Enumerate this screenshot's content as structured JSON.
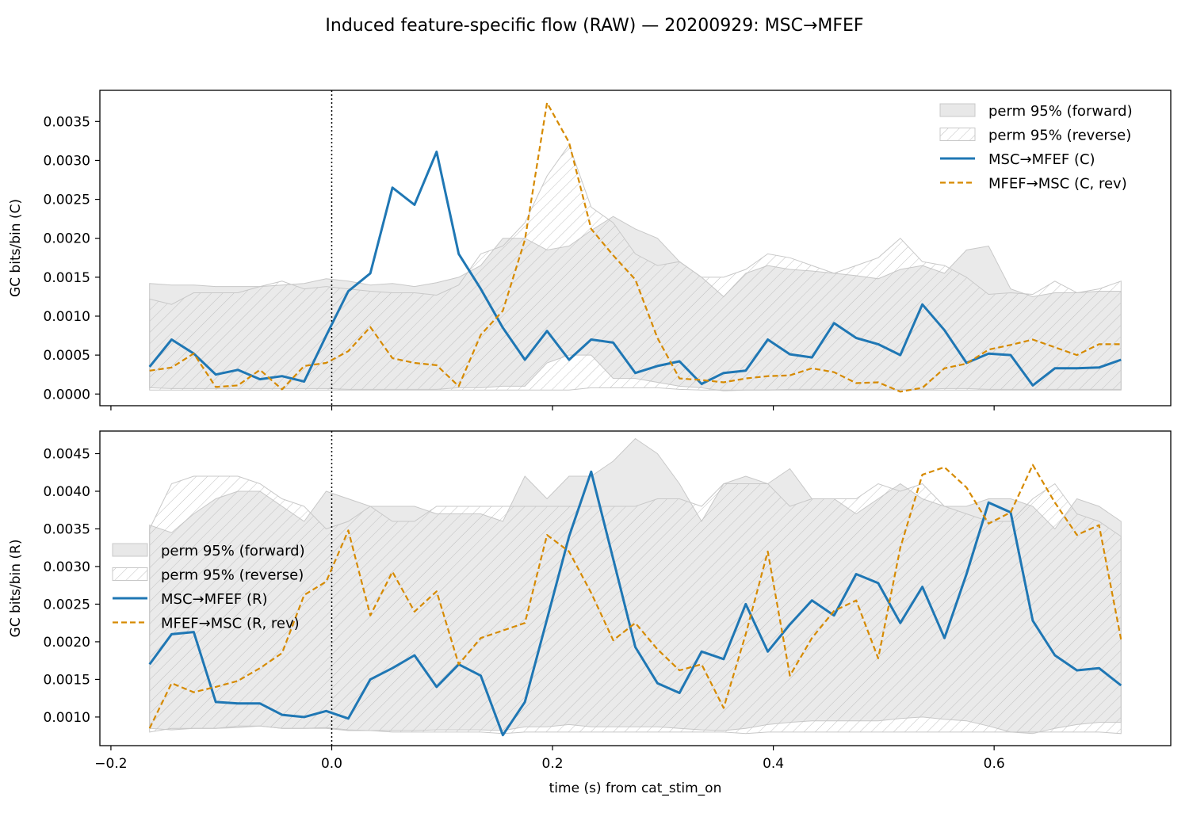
{
  "figure": {
    "title": "Induced feature-specific flow (RAW) — 20200929: MSC→MFEF"
  },
  "colors": {
    "forward": "#1f77b4",
    "reverse": "#d68a00",
    "band_fill": "#d9d9d9",
    "band_edge": "#c8c8c8",
    "hatch": "#c0c0c0"
  },
  "chart_data": [
    {
      "type": "line",
      "panel": "top",
      "ylabel": "GC bits/bin (C)",
      "xlabel": "",
      "xlim": [
        -0.21,
        0.76
      ],
      "ylim": [
        -0.00015,
        0.0039
      ],
      "yticks": [
        0.0,
        0.0005,
        0.001,
        0.0015,
        0.002,
        0.0025,
        0.003,
        0.0035
      ],
      "ytick_labels": [
        "0.0000",
        "0.0005",
        "0.0010",
        "0.0015",
        "0.0020",
        "0.0025",
        "0.0030",
        "0.0035"
      ],
      "xticks": [
        -0.2,
        0.0,
        0.2,
        0.4,
        0.6
      ],
      "xtick_labels": [],
      "grid": false,
      "vline_x": 0.0,
      "legend_position": "upper right",
      "x": [
        -0.165,
        -0.145,
        -0.125,
        -0.105,
        -0.085,
        -0.065,
        -0.045,
        -0.025,
        -0.005,
        0.015,
        0.035,
        0.055,
        0.075,
        0.095,
        0.115,
        0.135,
        0.155,
        0.175,
        0.195,
        0.215,
        0.235,
        0.255,
        0.275,
        0.295,
        0.315,
        0.335,
        0.355,
        0.375,
        0.395,
        0.415,
        0.435,
        0.455,
        0.475,
        0.495,
        0.515,
        0.535,
        0.555,
        0.575,
        0.595,
        0.615,
        0.635,
        0.655,
        0.675,
        0.695,
        0.715
      ],
      "series": [
        {
          "name": "MSC→MFEF (C)",
          "role": "forward",
          "style": "solid",
          "values": [
            0.00035,
            0.0007,
            0.00052,
            0.00025,
            0.00031,
            0.00019,
            0.00023,
            0.00016,
            0.00075,
            0.00132,
            0.00155,
            0.00265,
            0.00243,
            0.00311,
            0.0018,
            0.00135,
            0.00085,
            0.00044,
            0.00081,
            0.00044,
            0.0007,
            0.00066,
            0.00027,
            0.00036,
            0.00042,
            0.00013,
            0.00027,
            0.0003,
            0.0007,
            0.00051,
            0.00047,
            0.00091,
            0.00072,
            0.00064,
            0.0005,
            0.00115,
            0.00082,
            0.0004,
            0.00052,
            0.0005,
            0.00011,
            0.00033,
            0.00033,
            0.00034,
            0.00044
          ]
        },
        {
          "name": "MFEF→MSC (C, rev)",
          "role": "reverse",
          "style": "dashed",
          "values": [
            0.0003,
            0.00034,
            0.00052,
            9e-05,
            0.00011,
            0.00031,
            6e-05,
            0.00036,
            0.0004,
            0.00055,
            0.00086,
            0.00046,
            0.0004,
            0.00037,
            0.0001,
            0.00076,
            0.00107,
            0.00198,
            0.00374,
            0.00323,
            0.00212,
            0.00178,
            0.00147,
            0.00072,
            0.0002,
            0.00018,
            0.00015,
            0.0002,
            0.00023,
            0.00024,
            0.00033,
            0.00028,
            0.00014,
            0.00015,
            3e-05,
            8e-05,
            0.00033,
            0.00039,
            0.00057,
            0.00063,
            0.0007,
            0.0006,
            0.0005,
            0.00064,
            0.00064
          ]
        }
      ],
      "bands": [
        {
          "name": "perm 95% (forward)",
          "kind": "solid",
          "upper": [
            0.00142,
            0.0014,
            0.0014,
            0.00138,
            0.00138,
            0.00138,
            0.0014,
            0.00142,
            0.00148,
            0.00145,
            0.0014,
            0.00142,
            0.00138,
            0.00143,
            0.0015,
            0.00165,
            0.002,
            0.002,
            0.00185,
            0.0019,
            0.0021,
            0.00228,
            0.00212,
            0.002,
            0.0017,
            0.0015,
            0.00125,
            0.00155,
            0.00165,
            0.0016,
            0.00158,
            0.00155,
            0.00152,
            0.00148,
            0.0016,
            0.00165,
            0.00155,
            0.00185,
            0.0019,
            0.00135,
            0.00125,
            0.0013,
            0.0013,
            0.00132,
            0.00132
          ],
          "lower": [
            8e-05,
            7e-05,
            7e-05,
            7e-05,
            7e-05,
            7e-05,
            7e-05,
            7e-05,
            7e-05,
            6e-05,
            6e-05,
            6e-05,
            6e-05,
            6e-05,
            8e-05,
            8e-05,
            0.0001,
            0.0001,
            0.0004,
            0.0005,
            0.0005,
            0.0002,
            0.0002,
            0.00015,
            0.0001,
            8e-05,
            4e-05,
            5e-05,
            5e-05,
            6e-05,
            6e-05,
            6e-05,
            6e-05,
            6e-05,
            6e-05,
            6e-05,
            7e-05,
            7e-05,
            6e-05,
            6e-05,
            6e-05,
            6e-05,
            6e-05,
            6e-05,
            6e-05
          ]
        },
        {
          "name": "perm 95% (reverse)",
          "kind": "hatched",
          "upper": [
            0.00122,
            0.00115,
            0.0013,
            0.0013,
            0.0013,
            0.00138,
            0.00145,
            0.00135,
            0.00138,
            0.00135,
            0.00132,
            0.0013,
            0.0013,
            0.00127,
            0.0014,
            0.0018,
            0.0019,
            0.0022,
            0.0028,
            0.0032,
            0.0024,
            0.0022,
            0.0018,
            0.00165,
            0.0017,
            0.0015,
            0.0015,
            0.0016,
            0.0018,
            0.00175,
            0.00165,
            0.00155,
            0.00165,
            0.00175,
            0.002,
            0.0017,
            0.00165,
            0.0015,
            0.00128,
            0.0013,
            0.00128,
            0.00145,
            0.0013,
            0.00135,
            0.00145
          ],
          "lower": [
            5e-05,
            5e-05,
            5e-05,
            5e-05,
            5e-05,
            5e-05,
            5e-05,
            5e-05,
            5e-05,
            5e-05,
            5e-05,
            5e-05,
            5e-05,
            5e-05,
            5e-05,
            5e-05,
            5e-05,
            5e-05,
            5e-05,
            5e-05,
            8e-05,
            8e-05,
            8e-05,
            8e-05,
            6e-05,
            5e-05,
            5e-05,
            5e-05,
            5e-05,
            5e-05,
            5e-05,
            5e-05,
            5e-05,
            5e-05,
            5e-05,
            5e-05,
            5e-05,
            5e-05,
            5e-05,
            5e-05,
            5e-05,
            5e-05,
            5e-05,
            5e-05,
            5e-05
          ]
        }
      ]
    },
    {
      "type": "line",
      "panel": "bottom",
      "ylabel": "GC bits/bin (R)",
      "xlabel": "time (s) from cat_stim_on",
      "xlim": [
        -0.21,
        0.76
      ],
      "ylim": [
        0.00062,
        0.0048
      ],
      "yticks": [
        0.001,
        0.0015,
        0.002,
        0.0025,
        0.003,
        0.0035,
        0.004,
        0.0045
      ],
      "ytick_labels": [
        "0.0010",
        "0.0015",
        "0.0020",
        "0.0025",
        "0.0030",
        "0.0035",
        "0.0040",
        "0.0045"
      ],
      "xticks": [
        -0.2,
        0.0,
        0.2,
        0.4,
        0.6
      ],
      "xtick_labels": [
        "−0.2",
        "0.0",
        "0.2",
        "0.4",
        "0.6"
      ],
      "grid": false,
      "vline_x": 0.0,
      "legend_position": "center left",
      "x": [
        -0.165,
        -0.145,
        -0.125,
        -0.105,
        -0.085,
        -0.065,
        -0.045,
        -0.025,
        -0.005,
        0.015,
        0.035,
        0.055,
        0.075,
        0.095,
        0.115,
        0.135,
        0.155,
        0.175,
        0.195,
        0.215,
        0.235,
        0.255,
        0.275,
        0.295,
        0.315,
        0.335,
        0.355,
        0.375,
        0.395,
        0.415,
        0.435,
        0.455,
        0.475,
        0.495,
        0.515,
        0.535,
        0.555,
        0.575,
        0.595,
        0.615,
        0.635,
        0.655,
        0.675,
        0.695,
        0.715
      ],
      "series": [
        {
          "name": "MSC→MFEF (R)",
          "role": "forward",
          "style": "solid",
          "values": [
            0.0017,
            0.0021,
            0.00213,
            0.0012,
            0.00118,
            0.00118,
            0.00103,
            0.001,
            0.00108,
            0.00098,
            0.0015,
            0.00165,
            0.00182,
            0.0014,
            0.0017,
            0.00155,
            0.00076,
            0.0012,
            0.0023,
            0.0034,
            0.00426,
            0.0031,
            0.00193,
            0.00145,
            0.00132,
            0.00187,
            0.00177,
            0.0025,
            0.00187,
            0.00223,
            0.00255,
            0.00235,
            0.0029,
            0.00278,
            0.00225,
            0.00273,
            0.00205,
            0.0029,
            0.00385,
            0.00372,
            0.00228,
            0.00182,
            0.00162,
            0.00165,
            0.00142
          ]
        },
        {
          "name": "MFEF→MSC (R, rev)",
          "role": "reverse",
          "style": "dashed",
          "values": [
            0.00085,
            0.00145,
            0.00133,
            0.0014,
            0.00148,
            0.00165,
            0.00185,
            0.00262,
            0.0028,
            0.00348,
            0.00235,
            0.00293,
            0.0024,
            0.00267,
            0.0017,
            0.00205,
            0.00215,
            0.00225,
            0.00342,
            0.0032,
            0.00265,
            0.00202,
            0.00225,
            0.0019,
            0.00162,
            0.0017,
            0.00112,
            0.0021,
            0.0032,
            0.00155,
            0.00205,
            0.00241,
            0.00255,
            0.00178,
            0.00325,
            0.00422,
            0.00432,
            0.00405,
            0.00357,
            0.00372,
            0.00435,
            0.00385,
            0.00342,
            0.00355,
            0.00203
          ]
        }
      ],
      "bands": [
        {
          "name": "perm 95% (forward)",
          "kind": "solid",
          "upper": [
            0.00355,
            0.00345,
            0.0037,
            0.0039,
            0.004,
            0.004,
            0.0038,
            0.0036,
            0.004,
            0.0039,
            0.0038,
            0.0038,
            0.0038,
            0.0037,
            0.0037,
            0.0037,
            0.0036,
            0.0042,
            0.0039,
            0.0042,
            0.0042,
            0.0044,
            0.0047,
            0.0045,
            0.0041,
            0.0036,
            0.0041,
            0.0042,
            0.0041,
            0.0043,
            0.0039,
            0.0039,
            0.0037,
            0.0039,
            0.0041,
            0.0039,
            0.0038,
            0.0038,
            0.0039,
            0.0039,
            0.0038,
            0.0035,
            0.0039,
            0.0038,
            0.0036
          ],
          "lower": [
            0.00085,
            0.00083,
            0.00085,
            0.00085,
            0.00086,
            0.00088,
            0.00085,
            0.00085,
            0.00086,
            0.00083,
            0.00082,
            0.00082,
            0.00082,
            0.00083,
            0.00083,
            0.00083,
            0.00082,
            0.00087,
            0.00087,
            0.0009,
            0.00087,
            0.00087,
            0.00087,
            0.00087,
            0.00085,
            0.00083,
            0.00082,
            0.00085,
            0.0009,
            0.00093,
            0.00095,
            0.00095,
            0.00095,
            0.00095,
            0.00098,
            0.001,
            0.00097,
            0.00095,
            0.00088,
            0.0008,
            0.00078,
            0.00085,
            0.0009,
            0.00093,
            0.00093
          ]
        },
        {
          "name": "perm 95% (reverse)",
          "kind": "hatched",
          "upper": [
            0.0035,
            0.0041,
            0.0042,
            0.0042,
            0.0042,
            0.0041,
            0.0039,
            0.0038,
            0.0035,
            0.0036,
            0.0038,
            0.0036,
            0.0036,
            0.0038,
            0.0038,
            0.0038,
            0.0038,
            0.0038,
            0.0038,
            0.0038,
            0.0038,
            0.0038,
            0.0038,
            0.0039,
            0.0039,
            0.0038,
            0.0041,
            0.0041,
            0.0041,
            0.0038,
            0.0039,
            0.0039,
            0.0039,
            0.0041,
            0.004,
            0.0041,
            0.0038,
            0.0037,
            0.0036,
            0.0036,
            0.0039,
            0.0041,
            0.0037,
            0.0036,
            0.0034
          ],
          "lower": [
            0.0008,
            0.00085,
            0.00085,
            0.00085,
            0.00088,
            0.00088,
            0.00085,
            0.00085,
            0.00085,
            0.00082,
            0.00082,
            0.0008,
            0.0008,
            0.0008,
            0.0008,
            0.0008,
            0.00078,
            0.0008,
            0.0008,
            0.0008,
            0.0008,
            0.0008,
            0.0008,
            0.0008,
            0.0008,
            0.0008,
            0.0008,
            0.00078,
            0.0008,
            0.0008,
            0.0008,
            0.0008,
            0.0008,
            0.0008,
            0.0008,
            0.0008,
            0.0008,
            0.0008,
            0.0008,
            0.0008,
            0.0008,
            0.0008,
            0.0008,
            0.0008,
            0.00078
          ]
        }
      ]
    }
  ]
}
